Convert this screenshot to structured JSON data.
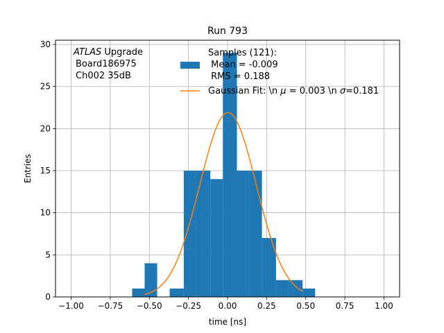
{
  "chart_data": {
    "type": "bar",
    "title": "Run 793",
    "xlabel": "time [ns]",
    "ylabel": "Entries",
    "xlim": [
      -1.1,
      1.1
    ],
    "ylim": [
      0,
      30.5
    ],
    "grid": true,
    "xticks": [
      -1.0,
      -0.75,
      -0.5,
      -0.25,
      0.0,
      0.25,
      0.5,
      0.75,
      1.0
    ],
    "xtick_labels": [
      "−1.00",
      "−0.75",
      "−0.50",
      "−0.25",
      "0.00",
      "0.25",
      "0.50",
      "0.75",
      "1.00"
    ],
    "yticks": [
      0,
      5,
      10,
      15,
      20,
      25,
      30
    ],
    "ytick_labels": [
      "0",
      "5",
      "10",
      "15",
      "20",
      "25",
      "30"
    ],
    "annotation": {
      "italic": "ATLAS",
      "rest": " Upgrade",
      "line2": "Board186975",
      "line3": "Ch002 35dB"
    },
    "legend": {
      "placement": "top-center",
      "histogram_lines": [
        "Samples (121):",
        " Mean = -0.009",
        " RMS = 0.188"
      ],
      "fit_label_pre": "Gaussian Fit: \\n ",
      "fit_mu": "μ",
      "fit_label_mid": " = 0.003 \\n ",
      "fit_sigma": "σ",
      "fit_label_post": "=0.181"
    },
    "histogram": {
      "name": "Samples (121):",
      "color": "#1f77b4",
      "bins": [
        {
          "x0": -0.61,
          "x1": -0.53,
          "count": 1
        },
        {
          "x0": -0.53,
          "x1": -0.45,
          "count": 4
        },
        {
          "x0": -0.45,
          "x1": -0.37,
          "count": 0
        },
        {
          "x0": -0.37,
          "x1": -0.28,
          "count": 1
        },
        {
          "x0": -0.28,
          "x1": -0.2,
          "count": 15
        },
        {
          "x0": -0.2,
          "x1": -0.11,
          "count": 15
        },
        {
          "x0": -0.11,
          "x1": -0.03,
          "count": 14
        },
        {
          "x0": -0.03,
          "x1": 0.06,
          "count": 29
        },
        {
          "x0": 0.06,
          "x1": 0.14,
          "count": 15
        },
        {
          "x0": 0.14,
          "x1": 0.22,
          "count": 15
        },
        {
          "x0": 0.22,
          "x1": 0.31,
          "count": 7
        },
        {
          "x0": 0.31,
          "x1": 0.39,
          "count": 2
        },
        {
          "x0": 0.39,
          "x1": 0.48,
          "count": 2
        },
        {
          "x0": 0.48,
          "x1": 0.56,
          "count": 1
        }
      ]
    },
    "fit": {
      "name": "Gaussian Fit",
      "color": "#ff7f0e",
      "mu": 0.003,
      "sigma": 0.181,
      "amplitude": 21.9,
      "x_range": [
        -0.53,
        0.48
      ]
    }
  }
}
